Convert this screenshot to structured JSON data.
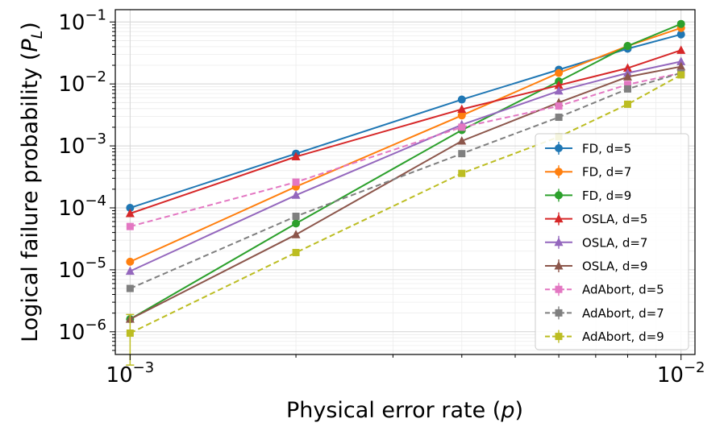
{
  "chart_data": {
    "type": "line",
    "xscale": "log",
    "yscale": "log",
    "xlabel": "Physical error rate",
    "xlabel_var": "p",
    "ylabel": "Logical failure probability",
    "ylabel_var": "P",
    "ylabel_sub": "L",
    "xlim": [
      0.00094,
      0.0106
    ],
    "ylim": [
      4.3e-07,
      0.158
    ],
    "x_ticks": [
      {
        "base": "10",
        "exp": "−3",
        "value": 0.001
      },
      {
        "base": "10",
        "exp": "−2",
        "value": 0.01
      }
    ],
    "y_ticks": [
      {
        "base": "10",
        "exp": "−6",
        "value": 1e-06
      },
      {
        "base": "10",
        "exp": "−5",
        "value": 1e-05
      },
      {
        "base": "10",
        "exp": "−4",
        "value": 0.0001
      },
      {
        "base": "10",
        "exp": "−3",
        "value": 0.001
      },
      {
        "base": "10",
        "exp": "−2",
        "value": 0.01
      },
      {
        "base": "10",
        "exp": "−1",
        "value": 0.1
      }
    ],
    "grid": true,
    "legend_position": "lower-right",
    "x": [
      0.001,
      0.002,
      0.004,
      0.006,
      0.008,
      0.01
    ],
    "series": [
      {
        "name": "FD, d=5",
        "color": "#1f77b4",
        "marker": "circle",
        "dashed": false,
        "values": [
          0.0001,
          0.00075,
          0.0056,
          0.017,
          0.037,
          0.063
        ]
      },
      {
        "name": "FD, d=7",
        "color": "#ff7f0e",
        "marker": "circle",
        "dashed": false,
        "values": [
          1.35e-05,
          0.00022,
          0.0031,
          0.015,
          0.041,
          0.08
        ]
      },
      {
        "name": "FD, d=9",
        "color": "#2ca02c",
        "marker": "circle",
        "dashed": false,
        "values": [
          1.6e-06,
          5.6e-05,
          0.0018,
          0.011,
          0.041,
          0.093
        ]
      },
      {
        "name": "OSLA, d=5",
        "color": "#d62728",
        "marker": "triangle",
        "dashed": false,
        "values": [
          8.1e-05,
          0.00067,
          0.0039,
          0.0095,
          0.018,
          0.035
        ]
      },
      {
        "name": "OSLA, d=7",
        "color": "#9467bd",
        "marker": "triangle",
        "dashed": false,
        "values": [
          9.5e-06,
          0.00016,
          0.0022,
          0.0077,
          0.015,
          0.023
        ]
      },
      {
        "name": "OSLA, d=9",
        "color": "#8c564b",
        "marker": "triangle",
        "dashed": false,
        "values": [
          1.6e-06,
          3.7e-05,
          0.0012,
          0.005,
          0.013,
          0.019
        ]
      },
      {
        "name": "AdAbort, d=5",
        "color": "#e377c2",
        "marker": "square",
        "dashed": true,
        "values": [
          5e-05,
          0.00026,
          0.002,
          0.0044,
          0.0098,
          0.015
        ]
      },
      {
        "name": "AdAbort, d=7",
        "color": "#7f7f7f",
        "marker": "square",
        "dashed": true,
        "values": [
          5e-06,
          7.3e-05,
          0.00075,
          0.0029,
          0.0083,
          0.015
        ]
      },
      {
        "name": "AdAbort, d=9",
        "color": "#bcbd22",
        "marker": "square",
        "dashed": true,
        "values": [
          9.5e-07,
          1.9e-05,
          0.00036,
          0.0014,
          0.0047,
          0.014
        ],
        "error_low_first": 2.9e-07,
        "error_high_first": 1.9e-06
      }
    ]
  }
}
